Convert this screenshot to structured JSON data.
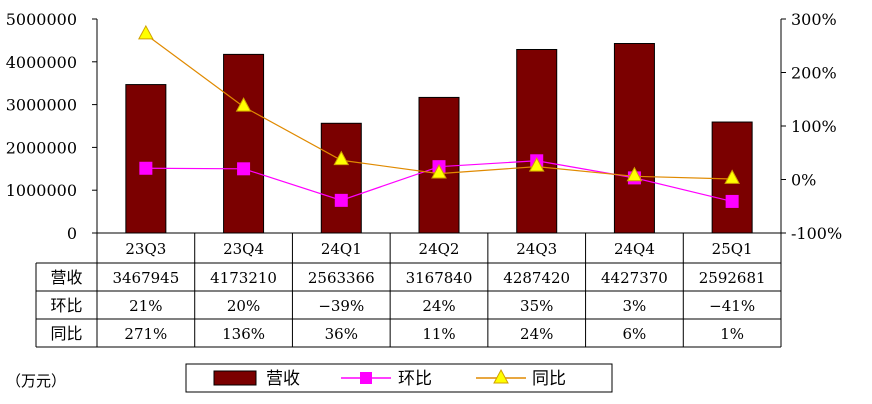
{
  "chart_data": {
    "type": "bar",
    "categories": [
      "23Q3",
      "23Q4",
      "24Q1",
      "24Q2",
      "24Q3",
      "24Q4",
      "25Q1"
    ],
    "series": [
      {
        "name": "营收",
        "type": "bar",
        "axis": "left",
        "color": "#7b0000",
        "values": [
          3467945,
          4173210,
          2563366,
          3167840,
          4287420,
          4427370,
          2592681
        ]
      },
      {
        "name": "环比",
        "type": "line",
        "axis": "right",
        "color": "#ff00ff",
        "marker": "square",
        "values": [
          21,
          20,
          -39,
          24,
          35,
          3,
          -41
        ]
      },
      {
        "name": "同比",
        "type": "line",
        "axis": "right",
        "color": "#e08a00",
        "marker_color": "#ffff00",
        "marker": "triangle",
        "values": [
          271,
          136,
          36,
          11,
          24,
          6,
          1
        ]
      }
    ],
    "y_left": {
      "ticks": [
        0,
        1000000,
        2000000,
        3000000,
        4000000,
        5000000
      ],
      "tick_labels": [
        "0",
        "1000000",
        "2000000",
        "3000000",
        "4000000",
        "5000000"
      ],
      "range": [
        0,
        5000000
      ]
    },
    "y_right": {
      "ticks": [
        -100,
        0,
        100,
        200,
        300
      ],
      "tick_labels": [
        "-100%",
        "0%",
        "100%",
        "200%",
        "300%"
      ],
      "range": [
        -100,
        300
      ]
    },
    "table": {
      "rows": [
        {
          "label": "营收",
          "cells": [
            "3467945",
            "4173210",
            "2563366",
            "3167840",
            "4287420",
            "4427370",
            "2592681"
          ]
        },
        {
          "label": "环比",
          "cells": [
            "21%",
            "20%",
            "−39%",
            "24%",
            "35%",
            "3%",
            "−41%"
          ]
        },
        {
          "label": "同比",
          "cells": [
            "271%",
            "136%",
            "36%",
            "11%",
            "24%",
            "6%",
            "1%"
          ]
        }
      ]
    },
    "unit_label": "（万元）",
    "legend": {
      "placement": "bottom",
      "items": [
        "营收",
        "环比",
        "同比"
      ]
    },
    "grid": false
  }
}
